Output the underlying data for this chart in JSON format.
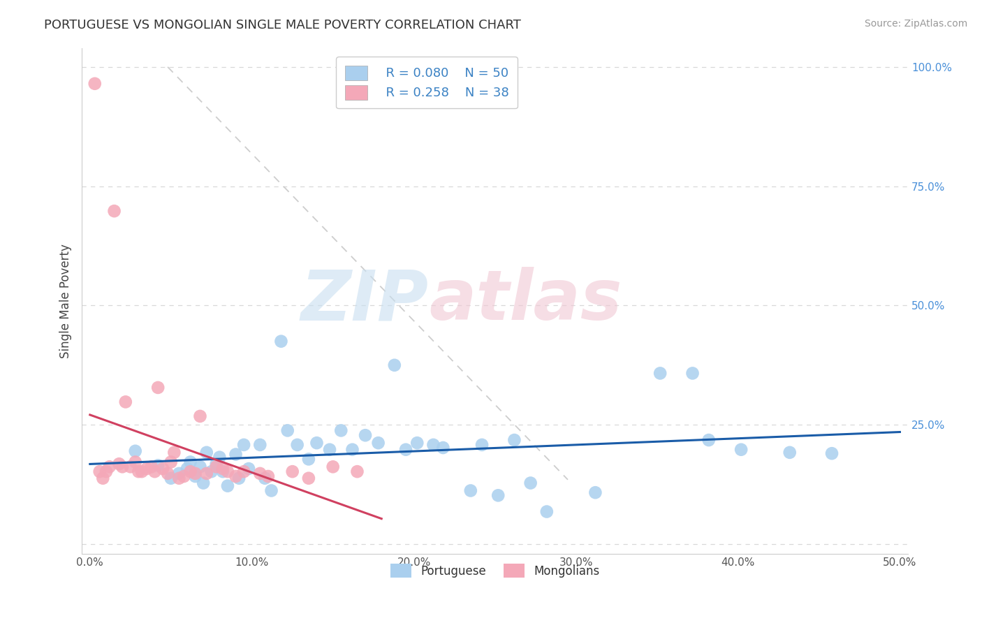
{
  "title": "PORTUGUESE VS MONGOLIAN SINGLE MALE POVERTY CORRELATION CHART",
  "source_text": "Source: ZipAtlas.com",
  "ylabel": "Single Male Poverty",
  "xlabel": "",
  "xlim": [
    -0.005,
    0.505
  ],
  "ylim": [
    -0.02,
    1.04
  ],
  "xticks": [
    0.0,
    0.1,
    0.2,
    0.3,
    0.4,
    0.5
  ],
  "xticklabels": [
    "0.0%",
    "10.0%",
    "20.0%",
    "30.0%",
    "40.0%",
    "50.0%"
  ],
  "yticks": [
    0.0,
    0.25,
    0.5,
    0.75,
    1.0
  ],
  "yticklabels": [
    "",
    "25.0%",
    "50.0%",
    "75.0%",
    "100.0%"
  ],
  "portuguese_R": 0.08,
  "portuguese_N": 50,
  "mongolian_R": 0.258,
  "mongolian_N": 38,
  "portuguese_color": "#aacfee",
  "mongolian_color": "#f4a8b8",
  "portuguese_line_color": "#1a5ca8",
  "mongolian_line_color": "#d04060",
  "legend_R_color": "#3b82c4",
  "portuguese_x": [
    0.028,
    0.042,
    0.05,
    0.055,
    0.06,
    0.062,
    0.065,
    0.068,
    0.07,
    0.072,
    0.075,
    0.078,
    0.08,
    0.082,
    0.085,
    0.09,
    0.092,
    0.095,
    0.098,
    0.105,
    0.108,
    0.112,
    0.118,
    0.122,
    0.128,
    0.135,
    0.14,
    0.148,
    0.155,
    0.162,
    0.17,
    0.178,
    0.188,
    0.195,
    0.202,
    0.212,
    0.218,
    0.235,
    0.242,
    0.252,
    0.262,
    0.272,
    0.282,
    0.312,
    0.352,
    0.372,
    0.382,
    0.402,
    0.432,
    0.458
  ],
  "portuguese_y": [
    0.195,
    0.165,
    0.138,
    0.148,
    0.158,
    0.172,
    0.142,
    0.162,
    0.128,
    0.192,
    0.152,
    0.168,
    0.182,
    0.152,
    0.122,
    0.188,
    0.138,
    0.208,
    0.158,
    0.208,
    0.138,
    0.112,
    0.425,
    0.238,
    0.208,
    0.178,
    0.212,
    0.198,
    0.238,
    0.198,
    0.228,
    0.212,
    0.375,
    0.198,
    0.212,
    0.208,
    0.202,
    0.112,
    0.208,
    0.102,
    0.218,
    0.128,
    0.068,
    0.108,
    0.358,
    0.358,
    0.218,
    0.198,
    0.192,
    0.19
  ],
  "mongolian_x": [
    0.003,
    0.006,
    0.008,
    0.01,
    0.012,
    0.015,
    0.018,
    0.02,
    0.022,
    0.025,
    0.028,
    0.03,
    0.032,
    0.035,
    0.038,
    0.04,
    0.042,
    0.045,
    0.048,
    0.05,
    0.052,
    0.055,
    0.058,
    0.062,
    0.065,
    0.068,
    0.072,
    0.078,
    0.082,
    0.085,
    0.09,
    0.095,
    0.105,
    0.11,
    0.125,
    0.135,
    0.15,
    0.165
  ],
  "mongolian_y": [
    0.965,
    0.152,
    0.138,
    0.152,
    0.162,
    0.698,
    0.168,
    0.162,
    0.298,
    0.162,
    0.172,
    0.152,
    0.152,
    0.158,
    0.162,
    0.152,
    0.328,
    0.158,
    0.148,
    0.172,
    0.192,
    0.138,
    0.142,
    0.152,
    0.148,
    0.268,
    0.148,
    0.162,
    0.158,
    0.152,
    0.142,
    0.152,
    0.148,
    0.142,
    0.152,
    0.138,
    0.162,
    0.152
  ],
  "diag_line_x": [
    0.048,
    0.295
  ],
  "diag_line_y": [
    1.0,
    0.135
  ]
}
